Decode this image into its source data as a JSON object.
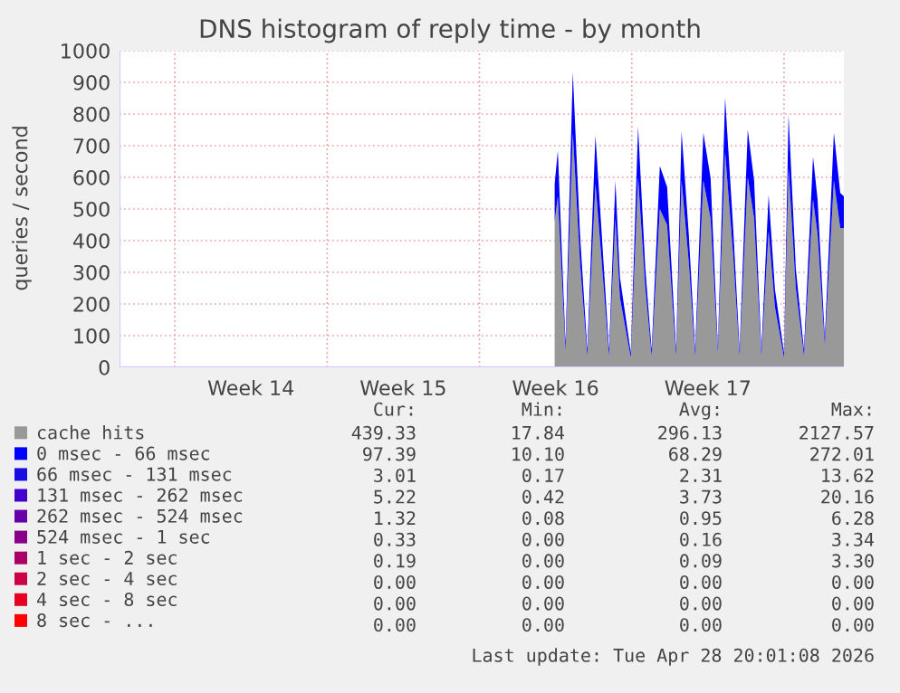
{
  "chart_data": {
    "type": "area",
    "stacked": true,
    "title": "DNS histogram of reply time - by month",
    "ylabel": "queries / second",
    "x": [
      "2026-04-15T13:00",
      "2026-04-15T16:30",
      "2026-04-16T01:00",
      "2026-04-16T09:00",
      "2026-04-16T17:00",
      "2026-04-17T01:00",
      "2026-04-17T10:00",
      "2026-04-17T17:00",
      "2026-04-18T01:00",
      "2026-04-18T08:00",
      "2026-04-18T13:00",
      "2026-04-19T01:00",
      "2026-04-19T09:00",
      "2026-04-19T17:00",
      "2026-04-20T00:00",
      "2026-04-20T09:00",
      "2026-04-20T17:00",
      "2026-04-21T03:00",
      "2026-04-21T09:00",
      "2026-04-21T17:00",
      "2026-04-22T00:00",
      "2026-04-22T09:00",
      "2026-04-22T17:00",
      "2026-04-23T01:00",
      "2026-04-23T09:00",
      "2026-04-23T18:00",
      "2026-04-24T01:00",
      "2026-04-24T10:00",
      "2026-04-24T17:00",
      "2026-04-25T01:00",
      "2026-04-25T09:00",
      "2026-04-25T16:00",
      "2026-04-26T02:00",
      "2026-04-26T07:00",
      "2026-04-26T15:00",
      "2026-04-27T00:00",
      "2026-04-27T10:00",
      "2026-04-27T15:00",
      "2026-04-27T23:00",
      "2026-04-28T09:00",
      "2026-04-28T16:00",
      "2026-04-28T20:00"
    ],
    "series": [
      {
        "name": "cache hits",
        "color": "#999999",
        "values": [
          460,
          540,
          50,
          740,
          330,
          35,
          580,
          330,
          35,
          470,
          220,
          30,
          600,
          250,
          35,
          500,
          450,
          35,
          590,
          330,
          35,
          590,
          470,
          45,
          680,
          350,
          35,
          600,
          470,
          35,
          430,
          190,
          30,
          630,
          250,
          35,
          530,
          420,
          70,
          590,
          440,
          440
        ]
      },
      {
        "name": "0 msec - 66 msec",
        "color": "#0000ff",
        "values": [
          119,
          144,
          24,
          192,
          87,
          20,
          152,
          87,
          20,
          119,
          64,
          16,
          160,
          62,
          20,
          136,
          120,
          20,
          155,
          87,
          20,
          151,
          128,
          20,
          172,
          86,
          20,
          151,
          119,
          20,
          115,
          56,
          16,
          168,
          62,
          20,
          135,
          111,
          23,
          151,
          111,
          100
        ]
      },
      {
        "name": "66 msec - 131 msec",
        "color": "#1a0be0",
        "values": [
          null,
          null,
          null,
          null,
          null,
          null,
          null,
          null,
          null,
          null,
          null,
          null,
          null,
          null,
          null,
          null,
          null,
          null,
          null,
          null,
          null,
          null,
          null,
          null,
          null,
          null,
          null,
          null,
          null,
          null,
          null,
          null,
          null,
          null,
          null,
          null,
          null,
          null,
          null,
          null,
          null,
          null
        ]
      },
      {
        "name": "131 msec - 262 msec",
        "color": "#4400cc",
        "values": [
          null,
          null,
          null,
          null,
          null,
          null,
          null,
          null,
          null,
          null,
          null,
          null,
          null,
          null,
          null,
          null,
          null,
          null,
          null,
          null,
          null,
          null,
          null,
          null,
          null,
          null,
          null,
          null,
          null,
          null,
          null,
          null,
          null,
          null,
          null,
          null,
          null,
          null,
          null,
          null,
          null,
          null
        ]
      },
      {
        "name": "262 msec - 524 msec",
        "color": "#6600aa",
        "values": [
          null,
          null,
          null,
          null,
          null,
          null,
          null,
          null,
          null,
          null,
          null,
          null,
          null,
          null,
          null,
          null,
          null,
          null,
          null,
          null,
          null,
          null,
          null,
          null,
          null,
          null,
          null,
          null,
          null,
          null,
          null,
          null,
          null,
          null,
          null,
          null,
          null,
          null,
          null,
          null,
          null,
          null
        ]
      },
      {
        "name": "524 msec - 1 sec",
        "color": "#880088",
        "values": [
          null,
          null,
          null,
          null,
          null,
          null,
          null,
          null,
          null,
          null,
          null,
          null,
          null,
          null,
          null,
          null,
          null,
          null,
          null,
          null,
          null,
          null,
          null,
          null,
          null,
          null,
          null,
          null,
          null,
          null,
          null,
          null,
          null,
          null,
          null,
          null,
          null,
          null,
          null,
          null,
          null,
          null
        ]
      },
      {
        "name": "1 sec - 2 sec",
        "color": "#aa0066",
        "values": [
          null,
          null,
          null,
          null,
          null,
          null,
          null,
          null,
          null,
          null,
          null,
          null,
          null,
          null,
          null,
          null,
          null,
          null,
          null,
          null,
          null,
          null,
          null,
          null,
          null,
          null,
          null,
          null,
          null,
          null,
          null,
          null,
          null,
          null,
          null,
          null,
          null,
          null,
          null,
          null,
          null,
          null
        ]
      },
      {
        "name": "2 sec - 4 sec",
        "color": "#cc0044",
        "values": [
          null,
          null,
          null,
          null,
          null,
          null,
          null,
          null,
          null,
          null,
          null,
          null,
          null,
          null,
          null,
          null,
          null,
          null,
          null,
          null,
          null,
          null,
          null,
          null,
          null,
          null,
          null,
          null,
          null,
          null,
          null,
          null,
          null,
          null,
          null,
          null,
          null,
          null,
          null,
          null,
          null,
          null
        ]
      },
      {
        "name": "4 sec - 8 sec",
        "color": "#e60022",
        "values": [
          null,
          null,
          null,
          null,
          null,
          null,
          null,
          null,
          null,
          null,
          null,
          null,
          null,
          null,
          null,
          null,
          null,
          null,
          null,
          null,
          null,
          null,
          null,
          null,
          null,
          null,
          null,
          null,
          null,
          null,
          null,
          null,
          null,
          null,
          null,
          null,
          null,
          null,
          null,
          null,
          null,
          null
        ]
      },
      {
        "name": "8 sec - ...",
        "color": "#ff0000",
        "values": [
          null,
          null,
          null,
          null,
          null,
          null,
          null,
          null,
          null,
          null,
          null,
          null,
          null,
          null,
          null,
          null,
          null,
          null,
          null,
          null,
          null,
          null,
          null,
          null,
          null,
          null,
          null,
          null,
          null,
          null,
          null,
          null,
          null,
          null,
          null,
          null,
          null,
          null,
          null,
          null,
          null,
          null
        ]
      }
    ],
    "xlim": [
      "2026-03-26T13:00",
      "2026-04-28T20:00"
    ],
    "xticks": [
      {
        "value": "2026-03-29T02:00",
        "label": null
      },
      {
        "value": "2026-04-01T14:00",
        "label": "Week 14"
      },
      {
        "value": "2026-04-05T02:00",
        "label": null
      },
      {
        "value": "2026-04-08T14:00",
        "label": "Week 15"
      },
      {
        "value": "2026-04-12T02:00",
        "label": null
      },
      {
        "value": "2026-04-15T14:00",
        "label": "Week 16"
      },
      {
        "value": "2026-04-19T02:00",
        "label": null
      },
      {
        "value": "2026-04-22T14:00",
        "label": "Week 17"
      },
      {
        "value": "2026-04-26T02:00",
        "label": null
      }
    ],
    "ylim": [
      0,
      1000
    ],
    "yticks": [
      0,
      100,
      200,
      300,
      400,
      500,
      600,
      700,
      800,
      900,
      1000
    ],
    "grid": true,
    "legend": "bottom",
    "annotations": [
      "Cur:",
      "Min:",
      "Avg:",
      "Max:",
      "439.33",
      "17.84",
      "296.13",
      "2127.57",
      "97.39",
      "10.10",
      "68.29",
      "272.01",
      "3.01",
      "0.17",
      "2.31",
      "13.62",
      "5.22",
      "0.42",
      "3.73",
      "20.16",
      "1.32",
      "0.08",
      "0.95",
      "6.28",
      "0.33",
      "0.00",
      "0.16",
      "3.34",
      "0.19",
      "0.00",
      "0.09",
      "3.30",
      "0.00",
      "0.00",
      "0.00",
      "0.00",
      "0.00",
      "0.00",
      "0.00",
      "0.00",
      "0.00",
      "0.00",
      "0.00",
      "0.00",
      "Last update: Tue Apr 28 20:01:08 2026"
    ]
  }
}
